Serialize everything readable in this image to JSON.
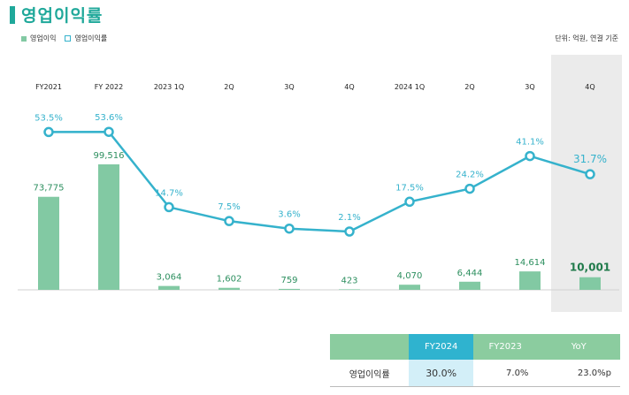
{
  "title": "영업이익률",
  "legend": {
    "bar_label": "영업이익",
    "line_label": "영업이익률"
  },
  "unit": "단위: 억원, 연결 기준",
  "colors": {
    "bar": "#82c9a3",
    "line": "#35b2cc",
    "title": "#1fa89a",
    "highlight_bg": "#ebebeb",
    "table_header": "#8bcc9f",
    "table_header_active": "#2fb3cf",
    "table_cell_active": "#d3eff8"
  },
  "chart_data": {
    "type": "bar",
    "categories": [
      "FY2021",
      "FY 2022",
      "2023 1Q",
      "2Q",
      "3Q",
      "4Q",
      "2024 1Q",
      "2Q",
      "3Q",
      "4Q"
    ],
    "series": [
      {
        "name": "영업이익",
        "type": "bar",
        "values": [
          73775,
          99516,
          3064,
          1602,
          759,
          423,
          4070,
          6444,
          14614,
          10001
        ],
        "labels": [
          "73,775",
          "99,516",
          "3,064",
          "1,602",
          "759",
          "423",
          "4,070",
          "6,444",
          "14,614",
          "10,001"
        ]
      },
      {
        "name": "영업이익률",
        "type": "line",
        "values": [
          53.5,
          53.6,
          14.7,
          7.5,
          3.6,
          2.1,
          17.5,
          24.2,
          41.1,
          31.7
        ],
        "labels": [
          "53.5%",
          "53.6%",
          "14.7%",
          "7.5%",
          "3.6%",
          "2.1%",
          "17.5%",
          "24.2%",
          "41.1%",
          "31.7%"
        ]
      }
    ],
    "highlight_index": 9
  },
  "table": {
    "headers": [
      "",
      "FY2024",
      "FY2023",
      "YoY"
    ],
    "row": {
      "label": "영업이익률",
      "values": [
        "30.0%",
        "7.0%",
        "23.0%p"
      ]
    }
  }
}
